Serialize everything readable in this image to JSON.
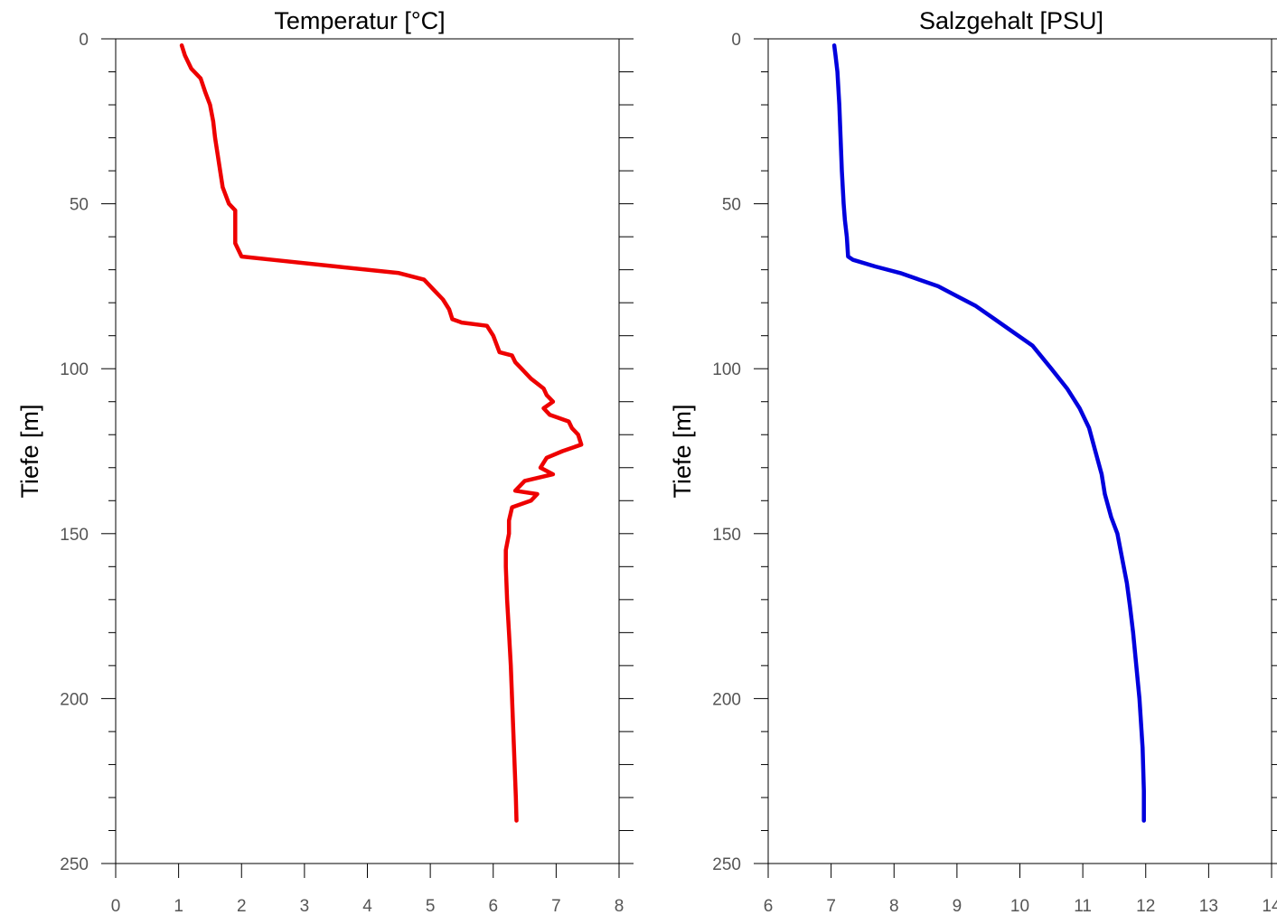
{
  "chart_data": [
    {
      "type": "line",
      "title": "Temperatur [°C]",
      "xlabel": "",
      "ylabel": "Tiefe [m]",
      "xlim": [
        0,
        8
      ],
      "ylim": [
        250,
        0
      ],
      "y_inverted": true,
      "grid": false,
      "x_ticks": [
        0,
        1,
        2,
        3,
        4,
        5,
        6,
        7,
        8
      ],
      "y_ticks": [
        0,
        50,
        100,
        150,
        200,
        250
      ],
      "series": [
        {
          "color": "#ee0000",
          "x": [
            1.05,
            1.1,
            1.2,
            1.35,
            1.42,
            1.5,
            1.55,
            1.58,
            1.62,
            1.66,
            1.7,
            1.8,
            1.9,
            1.9,
            1.9,
            2.0,
            2.5,
            3.5,
            4.5,
            4.9,
            5.05,
            5.2,
            5.3,
            5.35,
            5.5,
            5.9,
            6.0,
            6.1,
            6.3,
            6.35,
            6.45,
            6.6,
            6.8,
            6.85,
            6.95,
            6.8,
            6.9,
            7.2,
            7.25,
            7.35,
            7.4,
            7.1,
            6.85,
            6.75,
            6.95,
            6.5,
            6.35,
            6.7,
            6.6,
            6.3,
            6.25,
            6.25,
            6.2,
            6.2,
            6.22,
            6.25,
            6.28,
            6.3,
            6.32,
            6.34,
            6.36,
            6.37
          ],
          "y": [
            2,
            5,
            9,
            12,
            16,
            20,
            25,
            30,
            35,
            40,
            45,
            50,
            52,
            55,
            62,
            66,
            67,
            69,
            71,
            73,
            76,
            79,
            82,
            85,
            86,
            87,
            90,
            95,
            96,
            98,
            100,
            103,
            106,
            108,
            110,
            112,
            114,
            116,
            118,
            120,
            123,
            125,
            127,
            130,
            132,
            134,
            137,
            138,
            140,
            142,
            146,
            150,
            155,
            160,
            170,
            180,
            190,
            200,
            210,
            220,
            230,
            237
          ]
        }
      ]
    },
    {
      "type": "line",
      "title": "Salzgehalt [PSU]",
      "xlabel": "",
      "ylabel": "Tiefe [m]",
      "xlim": [
        6,
        14
      ],
      "ylim": [
        250,
        0
      ],
      "y_inverted": true,
      "grid": false,
      "x_ticks": [
        6,
        7,
        8,
        9,
        10,
        11,
        12,
        13,
        14
      ],
      "y_ticks": [
        0,
        50,
        100,
        150,
        200,
        250
      ],
      "series": [
        {
          "color": "#0000dd",
          "x": [
            7.05,
            7.07,
            7.1,
            7.13,
            7.15,
            7.17,
            7.2,
            7.22,
            7.25,
            7.27,
            7.35,
            7.7,
            8.1,
            8.4,
            8.7,
            9.0,
            9.3,
            9.6,
            9.9,
            10.2,
            10.5,
            10.75,
            10.95,
            11.1,
            11.2,
            11.3,
            11.35,
            11.45,
            11.55,
            11.62,
            11.7,
            11.75,
            11.8,
            11.85,
            11.9,
            11.95,
            11.97,
            11.97
          ],
          "y": [
            2,
            5,
            10,
            20,
            30,
            40,
            50,
            55,
            60,
            66,
            67,
            69,
            71,
            73,
            75,
            78,
            81,
            85,
            89,
            93,
            100,
            106,
            112,
            118,
            125,
            132,
            138,
            145,
            150,
            157,
            165,
            172,
            180,
            190,
            200,
            215,
            228,
            237
          ]
        }
      ]
    }
  ]
}
